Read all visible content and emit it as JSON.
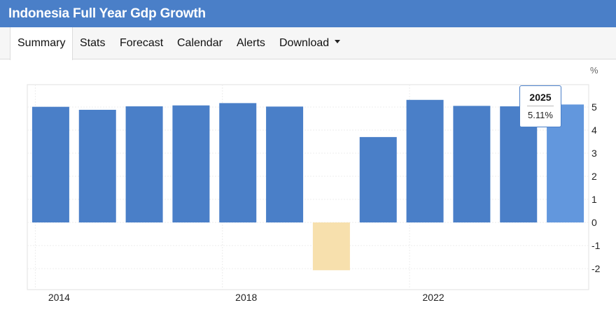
{
  "header": {
    "title": "Indonesia Full Year Gdp Growth"
  },
  "tabs": [
    {
      "label": "Summary",
      "active": true
    },
    {
      "label": "Stats"
    },
    {
      "label": "Forecast"
    },
    {
      "label": "Calendar"
    },
    {
      "label": "Alerts"
    },
    {
      "label": "Download",
      "has_dropdown": true
    }
  ],
  "tooltip": {
    "year": "2025",
    "value": "5.11%"
  },
  "colors": {
    "positive": "#4a7fc8",
    "negative": "#f7e0ad",
    "highlight": "#6297dd",
    "header": "#4a7fc8"
  },
  "chart_data": {
    "type": "bar",
    "unit": "%",
    "categories": [
      "2014",
      "2015",
      "2016",
      "2017",
      "2018",
      "2019",
      "2020",
      "2021",
      "2022",
      "2023",
      "2024",
      "2025"
    ],
    "values": [
      5.01,
      4.88,
      5.03,
      5.07,
      5.17,
      5.02,
      -2.07,
      3.7,
      5.31,
      5.05,
      5.03,
      5.11
    ],
    "x_tick_labels": [
      "2014",
      "2018",
      "2022"
    ],
    "y_ticks": [
      -2,
      -1,
      0,
      1,
      2,
      3,
      4,
      5
    ],
    "ylim": [
      -3,
      6
    ],
    "highlighted_category": "2025",
    "grid": true,
    "y_axis_position": "right"
  }
}
